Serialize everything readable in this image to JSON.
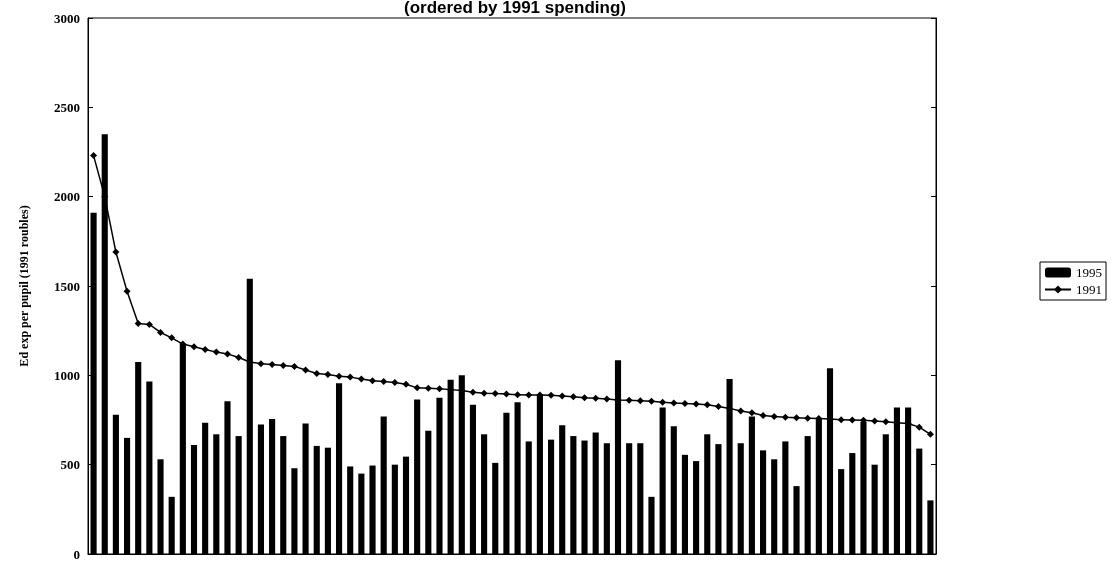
{
  "chart_data": {
    "type": "bar",
    "title": "(ordered by 1991 spending)",
    "ylabel": "Ed exp per pupil (1991 roubles)",
    "categories": [
      null,
      null,
      null,
      null,
      null,
      null,
      null,
      null,
      null,
      null,
      null,
      null,
      null,
      null,
      null,
      null,
      null,
      null,
      null,
      null,
      null,
      null,
      null,
      null,
      null,
      null,
      null,
      null,
      null,
      null,
      null,
      null,
      null,
      null,
      null,
      null,
      null,
      null,
      null,
      null,
      null,
      null,
      null,
      null,
      null,
      null,
      null,
      null,
      null,
      null,
      null,
      null,
      null,
      null,
      null,
      null,
      null,
      null,
      null,
      null,
      null,
      null,
      null,
      null,
      null,
      null,
      null,
      null,
      null,
      null,
      null,
      null,
      null,
      null,
      null,
      null
    ],
    "series": [
      {
        "name": "1995",
        "color": "#000000",
        "values": [
          1910,
          2350,
          780,
          650,
          1075,
          965,
          530,
          320,
          1170,
          610,
          735,
          670,
          855,
          660,
          1540,
          725,
          755,
          660,
          480,
          730,
          605,
          595,
          955,
          490,
          450,
          495,
          770,
          500,
          545,
          865,
          690,
          875,
          975,
          1000,
          835,
          670,
          510,
          790,
          850,
          630,
          890,
          640,
          720,
          660,
          635,
          680,
          620,
          1085,
          620,
          620,
          320,
          820,
          715,
          555,
          520,
          670,
          615,
          980,
          620,
          770,
          580,
          530,
          630,
          380,
          660,
          760,
          1040,
          475,
          565,
          740,
          500,
          670,
          820,
          820,
          590,
          300
        ]
      },
      {
        "name": "1991",
        "type": "line",
        "color": "#000000",
        "marker": "diamond",
        "values": [
          2230,
          2000,
          1690,
          1470,
          1290,
          1285,
          1240,
          1210,
          1175,
          1160,
          1145,
          1130,
          1120,
          1100,
          1075,
          1065,
          1060,
          1055,
          1050,
          1030,
          1010,
          1005,
          995,
          990,
          980,
          970,
          965,
          960,
          950,
          930,
          928,
          925,
          920,
          915,
          905,
          900,
          898,
          895,
          892,
          890,
          890,
          888,
          885,
          880,
          875,
          872,
          868,
          862,
          860,
          858,
          855,
          850,
          845,
          843,
          840,
          835,
          825,
          815,
          800,
          790,
          775,
          770,
          765,
          762,
          760,
          758,
          755,
          752,
          750,
          748,
          745,
          740,
          735,
          730,
          710,
          670
        ]
      }
    ],
    "ylim": [
      0,
      3000
    ],
    "yticks": [
      0,
      500,
      1000,
      1500,
      2000,
      2500,
      3000
    ],
    "grid": false,
    "legend": "right"
  }
}
